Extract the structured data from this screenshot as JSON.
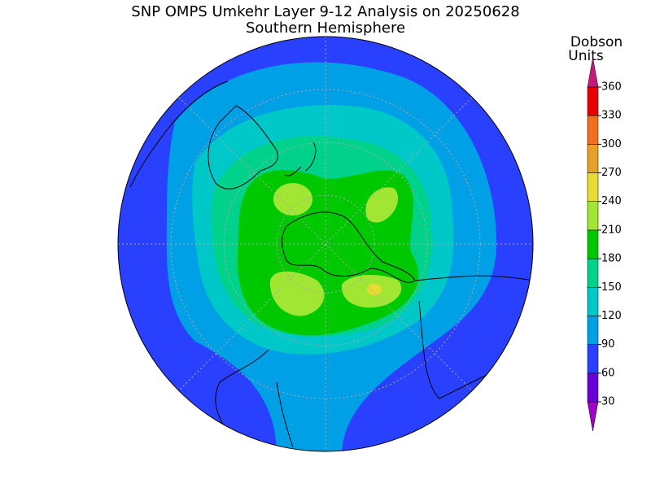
{
  "header": {
    "title": "SNP OMPS Umkehr Layer 9-12 Analysis on 20250628",
    "subtitle": "Southern Hemisphere"
  },
  "legend": {
    "title": [
      "Dobson",
      "Units"
    ],
    "ticks": [
      30,
      60,
      90,
      120,
      150,
      180,
      210,
      240,
      270,
      300,
      330,
      360
    ],
    "colors": [
      "#a000c8",
      "#6a00d8",
      "#2a40ff",
      "#00a0e6",
      "#00c8c8",
      "#00d28c",
      "#00c800",
      "#a0e632",
      "#e6dc32",
      "#e6a028",
      "#f07020",
      "#e60000",
      "#c8187a"
    ]
  }
}
